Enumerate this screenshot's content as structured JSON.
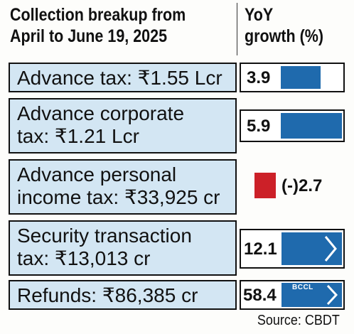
{
  "header": {
    "title_line1": "Collection breakup from",
    "title_line2": "April to June 19, 2025",
    "value_line1": "YoY",
    "value_line2": "growth (%)"
  },
  "chart_data": {
    "type": "bar",
    "title": "Collection breakup from April to June 19, 2025",
    "ylabel": "YoY growth (%)",
    "categories": [
      "Advance tax: ₹1.55 Lcr",
      "Advance corporate tax: ₹1.21 Lcr",
      "Advance personal income tax: ₹33,925 cr",
      "Security transaction tax: ₹13,013 cr",
      "Refunds: ₹86,385 cr"
    ],
    "values": [
      3.9,
      5.9,
      -2.7,
      12.1,
      58.4
    ],
    "value_labels": [
      "3.9",
      "5.9",
      "(-)2.7",
      "12.1",
      "58.4"
    ],
    "positive_color": "#1f6aad",
    "negative_color": "#cc2028"
  },
  "rows": [
    {
      "line1": "Advance tax: ₹1.55 Lcr",
      "line2": ""
    },
    {
      "line1": "Advance corporate",
      "line2": "tax: ₹1.21 Lcr"
    },
    {
      "line1": "Advance personal",
      "line2": "income tax: ₹33,925 cr"
    },
    {
      "line1": "Security transaction",
      "line2": "tax: ₹13,013 cr"
    },
    {
      "line1": "Refunds: ₹86,385 cr",
      "line2": ""
    }
  ],
  "watermark": "BCCL",
  "source": "Source: CBDT"
}
